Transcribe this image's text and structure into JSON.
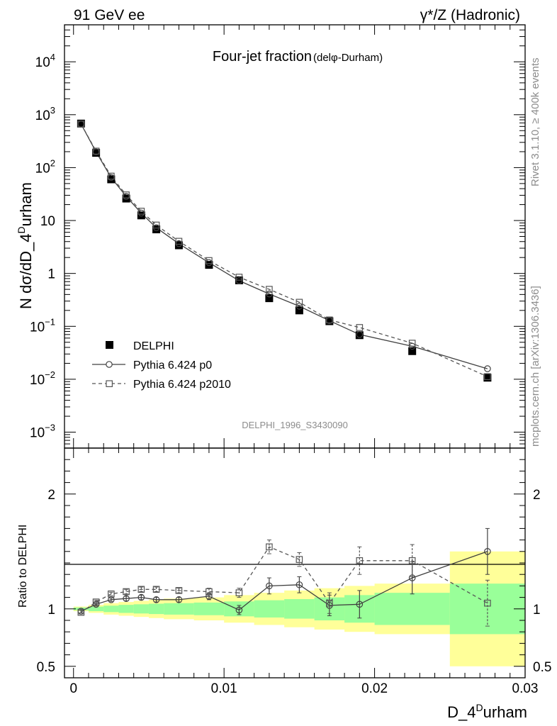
{
  "header": {
    "left": "91 GeV ee",
    "right": "γ*/Z (Hadronic)"
  },
  "side_labels": {
    "rivet": "Rivet 3.1.10, ≥ 400k events",
    "mcplots": "mcplots.cern.ch [arXiv:1306.3436]"
  },
  "chart_data": [
    {
      "type": "scatter",
      "title": "Four-jet fraction",
      "title_suffix": "(delφ-Durham)",
      "watermark": "DELPHI_1996_S3430090",
      "ylabel": "N dσ/dD_4Durham",
      "ylabel_parts": {
        "pre": "N dσ/dD_4",
        "sup": "D",
        "post": "urham"
      },
      "yscale": "log",
      "ylim": [
        0.0005,
        50000
      ],
      "xlim": [
        -0.0006,
        0.03
      ],
      "ytick_labels": [
        {
          "value": 0.001,
          "base": "10",
          "exp": "−3"
        },
        {
          "value": 0.01,
          "base": "10",
          "exp": "−2"
        },
        {
          "value": 0.1,
          "base": "10",
          "exp": "−1"
        },
        {
          "value": 1,
          "base": "1",
          "exp": ""
        },
        {
          "value": 10,
          "base": "10",
          "exp": ""
        },
        {
          "value": 100,
          "base": "10",
          "exp": "2"
        },
        {
          "value": 1000,
          "base": "10",
          "exp": "3"
        },
        {
          "value": 10000,
          "base": "10",
          "exp": "4"
        }
      ],
      "legend": {
        "position": "bottom-left",
        "entries": [
          "DELPHI",
          "Pythia 6.424 p0",
          "Pythia 6.424 p2010"
        ]
      },
      "x": [
        0.0005,
        0.0015,
        0.0025,
        0.0035,
        0.0045,
        0.0055,
        0.007,
        0.009,
        0.011,
        0.013,
        0.015,
        0.017,
        0.019,
        0.0225,
        0.0275
      ],
      "series": [
        {
          "name": "DELPHI",
          "marker": "filled-square",
          "line": "none",
          "values": [
            680,
            190,
            60,
            26,
            12.5,
            6.8,
            3.4,
            1.45,
            0.74,
            0.34,
            0.2,
            0.125,
            0.068,
            0.034,
            0.0107
          ]
        },
        {
          "name": "Pythia 6.424 p0",
          "marker": "open-circle",
          "line": "solid",
          "values": [
            665,
            198,
            65,
            28.5,
            13.8,
            7.3,
            3.65,
            1.6,
            0.73,
            0.41,
            0.24,
            0.128,
            0.07,
            0.042,
            0.0158
          ]
        },
        {
          "name": "Pythia 6.424 p2010",
          "marker": "open-square",
          "line": "dashed",
          "values": [
            665,
            205,
            69,
            30.5,
            15,
            8.2,
            4.05,
            1.75,
            0.85,
            0.5,
            0.285,
            0.132,
            0.095,
            0.048,
            0.0112
          ]
        }
      ]
    },
    {
      "type": "scatter",
      "ylabel": "Ratio to DELPHI",
      "xlabel": "D_4Durham",
      "xlabel_parts": {
        "pre": "D_4",
        "sup": "D",
        "post": "urham"
      },
      "xlim": [
        -0.0006,
        0.03
      ],
      "ylim": [
        0.4,
        2.4
      ],
      "xticks": [
        0,
        0.01,
        0.02,
        0.03
      ],
      "xtick_labels": [
        "0",
        "0.01",
        "0.02",
        "0.03"
      ],
      "yticks": [
        0.5,
        1,
        2
      ],
      "ytick_labels": [
        "0.5",
        "1",
        "2"
      ],
      "bands": {
        "edges": [
          0,
          0.001,
          0.002,
          0.003,
          0.004,
          0.005,
          0.006,
          0.008,
          0.01,
          0.012,
          0.014,
          0.016,
          0.018,
          0.02,
          0.025,
          0.03
        ],
        "yellow_half_width": [
          0.02,
          0.035,
          0.05,
          0.06,
          0.07,
          0.08,
          0.09,
          0.1,
          0.12,
          0.14,
          0.16,
          0.18,
          0.2,
          0.22,
          0.5
        ],
        "green_half_width": [
          0.012,
          0.02,
          0.028,
          0.035,
          0.04,
          0.045,
          0.05,
          0.055,
          0.065,
          0.075,
          0.085,
          0.1,
          0.12,
          0.14,
          0.22
        ]
      },
      "x": [
        0.0005,
        0.0015,
        0.0025,
        0.0035,
        0.0045,
        0.0055,
        0.007,
        0.009,
        0.011,
        0.013,
        0.015,
        0.017,
        0.019,
        0.0225,
        0.0275
      ],
      "series": [
        {
          "name": "Pythia 6.424 p0",
          "marker": "open-circle",
          "line": "solid",
          "values": [
            0.98,
            1.04,
            1.08,
            1.09,
            1.1,
            1.08,
            1.08,
            1.11,
            0.99,
            1.2,
            1.21,
            1.03,
            1.04,
            1.27,
            1.5
          ],
          "errors": [
            0.015,
            0.015,
            0.015,
            0.02,
            0.02,
            0.02,
            0.02,
            0.03,
            0.04,
            0.07,
            0.07,
            0.09,
            0.12,
            0.14,
            0.2
          ]
        },
        {
          "name": "Pythia 6.424 p2010",
          "marker": "open-square",
          "line": "dashed",
          "values": [
            0.97,
            1.06,
            1.13,
            1.15,
            1.17,
            1.17,
            1.16,
            1.15,
            1.14,
            1.54,
            1.43,
            1.05,
            1.42,
            1.42,
            1.05
          ],
          "errors": [
            0.015,
            0.015,
            0.015,
            0.02,
            0.02,
            0.02,
            0.02,
            0.03,
            0.04,
            0.06,
            0.06,
            0.09,
            0.12,
            0.14,
            0.2
          ]
        }
      ]
    }
  ]
}
